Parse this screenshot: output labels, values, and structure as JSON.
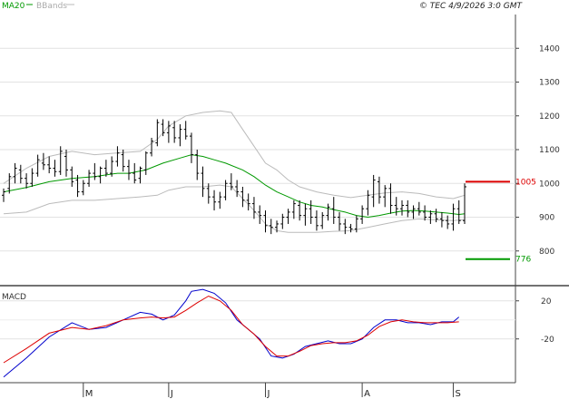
{
  "legend": {
    "ma_label": "MA20",
    "bb_label": "BBands",
    "ma_color": "#009900",
    "bb_color": "#bbbbbb"
  },
  "timestamp": "© TEC 4/9/2026 3:0 GMT",
  "macd_label": "MACD",
  "chart_data": [
    {
      "type": "ohlc",
      "price_ticks": [
        "1400",
        "1300",
        "1200",
        "1100",
        "1000",
        "900",
        "800"
      ],
      "price_tick_values": [
        1400,
        1300,
        1200,
        1100,
        1000,
        900,
        800
      ],
      "ylim": [
        700,
        1500
      ],
      "month_labels": [
        "M",
        "J",
        "J",
        "A",
        "S"
      ],
      "month_label_index": [
        14,
        29,
        46,
        63,
        79
      ],
      "n_bars": 82,
      "ohlc": [
        [
          965,
          985,
          945,
          975
        ],
        [
          985,
          1030,
          970,
          1020
        ],
        [
          1020,
          1060,
          1000,
          1045
        ],
        [
          1040,
          1055,
          1000,
          1015
        ],
        [
          1015,
          1030,
          985,
          1000
        ],
        [
          1000,
          1045,
          990,
          1030
        ],
        [
          1030,
          1085,
          1020,
          1070
        ],
        [
          1060,
          1090,
          1040,
          1055
        ],
        [
          1055,
          1080,
          1030,
          1045
        ],
        [
          1045,
          1070,
          1020,
          1035
        ],
        [
          1035,
          1110,
          1025,
          1095
        ],
        [
          1080,
          1100,
          1020,
          1040
        ],
        [
          1040,
          1050,
          990,
          1005
        ],
        [
          1010,
          1025,
          960,
          975
        ],
        [
          975,
          1010,
          965,
          1000
        ],
        [
          1000,
          1040,
          990,
          1030
        ],
        [
          1030,
          1060,
          1010,
          1020
        ],
        [
          1020,
          1050,
          1000,
          1045
        ],
        [
          1045,
          1070,
          1020,
          1030
        ],
        [
          1030,
          1080,
          1020,
          1065
        ],
        [
          1065,
          1110,
          1050,
          1090
        ],
        [
          1085,
          1100,
          1035,
          1050
        ],
        [
          1050,
          1070,
          1010,
          1030
        ],
        [
          1030,
          1060,
          1000,
          1010
        ],
        [
          1015,
          1050,
          1000,
          1045
        ],
        [
          1040,
          1095,
          1025,
          1090
        ],
        [
          1090,
          1135,
          1080,
          1125
        ],
        [
          1120,
          1190,
          1110,
          1180
        ],
        [
          1175,
          1190,
          1140,
          1150
        ],
        [
          1150,
          1185,
          1120,
          1170
        ],
        [
          1165,
          1185,
          1120,
          1135
        ],
        [
          1135,
          1175,
          1110,
          1160
        ],
        [
          1160,
          1185,
          1130,
          1140
        ],
        [
          1140,
          1150,
          1060,
          1085
        ],
        [
          1085,
          1100,
          1010,
          1030
        ],
        [
          1030,
          1050,
          960,
          985
        ],
        [
          985,
          1000,
          940,
          960
        ],
        [
          960,
          980,
          920,
          945
        ],
        [
          945,
          975,
          925,
          960
        ],
        [
          960,
          1010,
          950,
          1000
        ],
        [
          1000,
          1030,
          980,
          990
        ],
        [
          990,
          1010,
          960,
          975
        ],
        [
          975,
          990,
          930,
          950
        ],
        [
          950,
          970,
          920,
          940
        ],
        [
          940,
          960,
          895,
          915
        ],
        [
          915,
          935,
          880,
          905
        ],
        [
          905,
          920,
          855,
          875
        ],
        [
          875,
          895,
          850,
          870
        ],
        [
          870,
          890,
          855,
          880
        ],
        [
          880,
          910,
          865,
          900
        ],
        [
          900,
          925,
          880,
          915
        ],
        [
          915,
          950,
          895,
          940
        ],
        [
          935,
          950,
          890,
          905
        ],
        [
          905,
          940,
          875,
          925
        ],
        [
          925,
          950,
          880,
          900
        ],
        [
          900,
          920,
          860,
          875
        ],
        [
          875,
          915,
          865,
          905
        ],
        [
          905,
          940,
          890,
          930
        ],
        [
          925,
          960,
          880,
          900
        ],
        [
          900,
          915,
          860,
          880
        ],
        [
          880,
          895,
          850,
          870
        ],
        [
          870,
          880,
          855,
          865
        ],
        [
          865,
          905,
          855,
          895
        ],
        [
          895,
          935,
          880,
          925
        ],
        [
          925,
          980,
          905,
          965
        ],
        [
          960,
          1025,
          930,
          1010
        ],
        [
          1005,
          1020,
          940,
          960
        ],
        [
          960,
          995,
          930,
          985
        ],
        [
          985,
          1000,
          910,
          935
        ],
        [
          935,
          960,
          905,
          925
        ],
        [
          925,
          950,
          905,
          935
        ],
        [
          935,
          950,
          900,
          915
        ],
        [
          915,
          935,
          895,
          925
        ],
        [
          925,
          945,
          905,
          915
        ],
        [
          915,
          935,
          890,
          900
        ],
        [
          900,
          920,
          880,
          910
        ],
        [
          910,
          925,
          885,
          895
        ],
        [
          895,
          915,
          870,
          890
        ],
        [
          890,
          905,
          865,
          880
        ],
        [
          880,
          940,
          860,
          925
        ],
        [
          925,
          950,
          880,
          890
        ],
        [
          890,
          1000,
          880,
          990
        ]
      ],
      "ma20": [
        [
          0,
          975
        ],
        [
          4,
          988
        ],
        [
          8,
          1005
        ],
        [
          12,
          1015
        ],
        [
          16,
          1020
        ],
        [
          20,
          1030
        ],
        [
          22,
          1030
        ],
        [
          25,
          1040
        ],
        [
          28,
          1060
        ],
        [
          31,
          1075
        ],
        [
          33,
          1085
        ],
        [
          35,
          1080
        ],
        [
          37,
          1070
        ],
        [
          39,
          1060
        ],
        [
          42,
          1040
        ],
        [
          44,
          1020
        ],
        [
          46,
          995
        ],
        [
          48,
          975
        ],
        [
          50,
          960
        ],
        [
          52,
          945
        ],
        [
          54,
          935
        ],
        [
          56,
          930
        ],
        [
          58,
          922
        ],
        [
          60,
          915
        ],
        [
          62,
          905
        ],
        [
          64,
          900
        ],
        [
          66,
          905
        ],
        [
          68,
          912
        ],
        [
          70,
          918
        ],
        [
          72,
          920
        ],
        [
          74,
          918
        ],
        [
          76,
          915
        ],
        [
          78,
          912
        ],
        [
          80,
          908
        ],
        [
          81,
          910
        ]
      ],
      "bb_upper": [
        [
          0,
          1000
        ],
        [
          4,
          1045
        ],
        [
          8,
          1080
        ],
        [
          12,
          1095
        ],
        [
          16,
          1085
        ],
        [
          20,
          1090
        ],
        [
          24,
          1095
        ],
        [
          27,
          1130
        ],
        [
          29,
          1170
        ],
        [
          32,
          1200
        ],
        [
          35,
          1210
        ],
        [
          38,
          1215
        ],
        [
          40,
          1210
        ],
        [
          42,
          1160
        ],
        [
          44,
          1110
        ],
        [
          46,
          1060
        ],
        [
          48,
          1040
        ],
        [
          50,
          1010
        ],
        [
          52,
          990
        ],
        [
          55,
          975
        ],
        [
          58,
          965
        ],
        [
          61,
          958
        ],
        [
          64,
          965
        ],
        [
          67,
          972
        ],
        [
          70,
          975
        ],
        [
          73,
          970
        ],
        [
          76,
          960
        ],
        [
          79,
          955
        ],
        [
          81,
          965
        ]
      ],
      "bb_lower": [
        [
          0,
          910
        ],
        [
          4,
          915
        ],
        [
          8,
          940
        ],
        [
          12,
          950
        ],
        [
          16,
          950
        ],
        [
          20,
          955
        ],
        [
          24,
          960
        ],
        [
          27,
          965
        ],
        [
          29,
          980
        ],
        [
          32,
          990
        ],
        [
          35,
          990
        ],
        [
          38,
          995
        ],
        [
          40,
          990
        ],
        [
          42,
          955
        ],
        [
          44,
          920
        ],
        [
          46,
          880
        ],
        [
          48,
          860
        ],
        [
          50,
          855
        ],
        [
          52,
          855
        ],
        [
          55,
          855
        ],
        [
          58,
          858
        ],
        [
          61,
          860
        ],
        [
          64,
          870
        ],
        [
          67,
          880
        ],
        [
          70,
          890
        ],
        [
          73,
          895
        ],
        [
          76,
          892
        ],
        [
          79,
          890
        ],
        [
          81,
          893
        ]
      ],
      "resistance": {
        "value": 1005,
        "label": "1005",
        "color": "#dd0000"
      },
      "support": {
        "value": 776,
        "label": "776",
        "color": "#009900"
      }
    },
    {
      "type": "line",
      "title": "MACD",
      "y_ticks": [
        "20",
        "-20"
      ],
      "y_tick_values": [
        20,
        -20
      ],
      "ylim": [
        -65,
        35
      ],
      "series": [
        {
          "color": "#0000cc",
          "points": [
            [
              0,
              -60
            ],
            [
              4,
              -40
            ],
            [
              8,
              -18
            ],
            [
              12,
              -3
            ],
            [
              15,
              -10
            ],
            [
              18,
              -8
            ],
            [
              21,
              0
            ],
            [
              24,
              8
            ],
            [
              26,
              6
            ],
            [
              28,
              0
            ],
            [
              30,
              5
            ],
            [
              32,
              20
            ],
            [
              33,
              30
            ],
            [
              35,
              32
            ],
            [
              37,
              28
            ],
            [
              39,
              18
            ],
            [
              41,
              0
            ],
            [
              43,
              -10
            ],
            [
              45,
              -20
            ],
            [
              47,
              -38
            ],
            [
              49,
              -40
            ],
            [
              51,
              -36
            ],
            [
              53,
              -28
            ],
            [
              55,
              -25
            ],
            [
              57,
              -22
            ],
            [
              59,
              -25
            ],
            [
              61,
              -25
            ],
            [
              63,
              -20
            ],
            [
              65,
              -8
            ],
            [
              67,
              0
            ],
            [
              69,
              0
            ],
            [
              71,
              -3
            ],
            [
              73,
              -3
            ],
            [
              75,
              -5
            ],
            [
              77,
              -2
            ],
            [
              79,
              -2
            ],
            [
              80,
              3
            ]
          ]
        },
        {
          "color": "#dd0000",
          "points": [
            [
              0,
              -45
            ],
            [
              4,
              -30
            ],
            [
              8,
              -14
            ],
            [
              12,
              -8
            ],
            [
              15,
              -10
            ],
            [
              18,
              -6
            ],
            [
              21,
              0
            ],
            [
              24,
              2
            ],
            [
              26,
              3
            ],
            [
              28,
              2
            ],
            [
              30,
              3
            ],
            [
              32,
              10
            ],
            [
              34,
              18
            ],
            [
              36,
              25
            ],
            [
              38,
              20
            ],
            [
              40,
              10
            ],
            [
              42,
              -5
            ],
            [
              44,
              -15
            ],
            [
              46,
              -28
            ],
            [
              48,
              -38
            ],
            [
              50,
              -38
            ],
            [
              52,
              -33
            ],
            [
              54,
              -27
            ],
            [
              56,
              -25
            ],
            [
              58,
              -24
            ],
            [
              60,
              -24
            ],
            [
              62,
              -22
            ],
            [
              64,
              -16
            ],
            [
              66,
              -7
            ],
            [
              68,
              -2
            ],
            [
              70,
              0
            ],
            [
              72,
              -2
            ],
            [
              74,
              -3
            ],
            [
              76,
              -3
            ],
            [
              78,
              -3
            ],
            [
              80,
              -2
            ]
          ]
        }
      ]
    }
  ]
}
